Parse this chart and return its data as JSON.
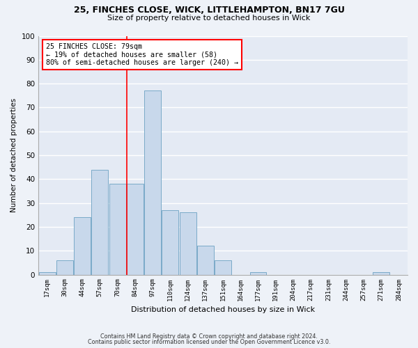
{
  "title1": "25, FINCHES CLOSE, WICK, LITTLEHAMPTON, BN17 7GU",
  "title2": "Size of property relative to detached houses in Wick",
  "xlabel": "Distribution of detached houses by size in Wick",
  "ylabel": "Number of detached properties",
  "bar_color": "#c8d8eb",
  "bar_edge_color": "#7aaac8",
  "categories": [
    "17sqm",
    "30sqm",
    "44sqm",
    "57sqm",
    "70sqm",
    "84sqm",
    "97sqm",
    "110sqm",
    "124sqm",
    "137sqm",
    "151sqm",
    "164sqm",
    "177sqm",
    "191sqm",
    "204sqm",
    "217sqm",
    "231sqm",
    "244sqm",
    "257sqm",
    "271sqm",
    "284sqm"
  ],
  "values": [
    1,
    6,
    24,
    44,
    38,
    38,
    77,
    27,
    26,
    12,
    6,
    0,
    1,
    0,
    0,
    0,
    0,
    0,
    0,
    1,
    0
  ],
  "property_label": "25 FINCHES CLOSE: 79sqm",
  "annotation_line1": "← 19% of detached houses are smaller (58)",
  "annotation_line2": "80% of semi-detached houses are larger (240) →",
  "vline_pos": 4.54,
  "ylim": [
    0,
    100
  ],
  "background_color": "#eef2f8",
  "plot_bg_color": "#e4eaf4",
  "grid_color": "#ffffff",
  "footnote1": "Contains HM Land Registry data © Crown copyright and database right 2024.",
  "footnote2": "Contains public sector information licensed under the Open Government Licence v3.0."
}
